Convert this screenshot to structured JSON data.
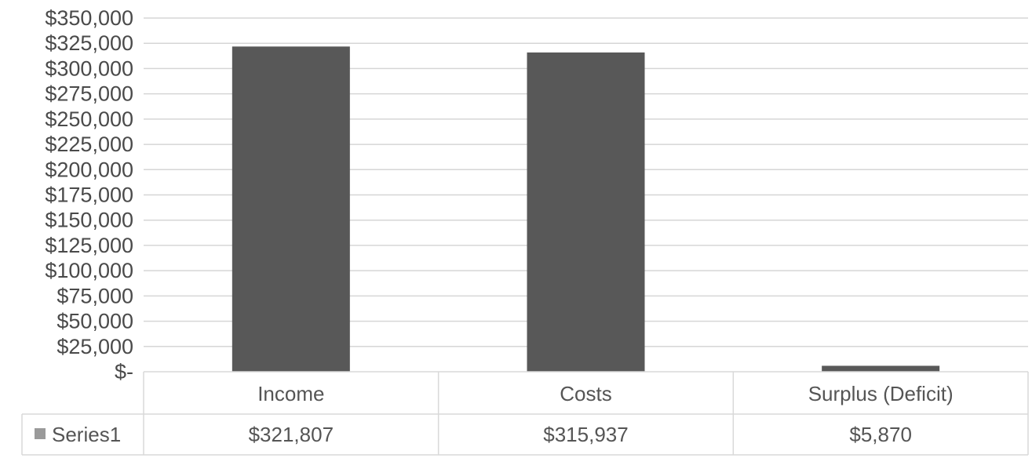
{
  "chart_data": {
    "type": "bar",
    "categories": [
      "Income",
      "Costs",
      "Surplus (Deficit)"
    ],
    "series": [
      {
        "name": "Series1",
        "values": [
          321807,
          315937,
          5870
        ],
        "value_labels": [
          "$321,807",
          "$315,937",
          "$5,870"
        ],
        "color": "#585858"
      }
    ],
    "ylim": [
      0,
      350000
    ],
    "y_ticks": [
      0,
      25000,
      50000,
      75000,
      100000,
      125000,
      150000,
      175000,
      200000,
      225000,
      250000,
      275000,
      300000,
      325000,
      350000
    ],
    "y_tick_labels": [
      "$-",
      "$25,000",
      "$50,000",
      "$75,000",
      "$100,000",
      "$125,000",
      "$150,000",
      "$175,000",
      "$200,000",
      "$225,000",
      "$250,000",
      "$275,000",
      "$300,000",
      "$325,000",
      "$350,000"
    ],
    "grid": true,
    "legend": "data-table",
    "data_table": true
  },
  "colors": {
    "bar": "#585858",
    "grid": "#d6d6d6",
    "table_border": "#d9d9d9",
    "legend_key": "#9a9a9a"
  }
}
